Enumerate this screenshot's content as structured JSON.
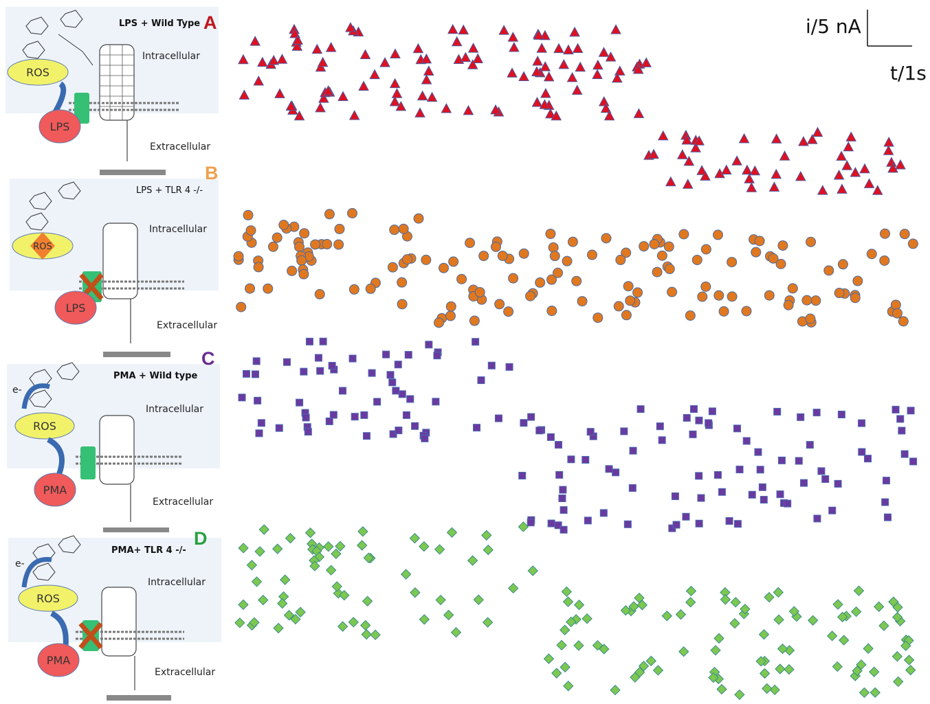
{
  "panels": [
    {
      "letter": "A",
      "letter_color": "#c0141c",
      "condition": "LPS + Wild Type",
      "intracellular": "Intracellular",
      "extracellular": "Extracellular",
      "stimulus": "LPS",
      "ros": "ROS",
      "ros_blocked": false,
      "tlr_blocked": false
    },
    {
      "letter": "B",
      "letter_color": "#f0a050",
      "condition": "LPS + TLR 4 -/-",
      "intracellular": "Intracellular",
      "extracellular": "Extracellular",
      "stimulus": "LPS",
      "ros": "ROS",
      "ros_blocked": true,
      "tlr_blocked": true
    },
    {
      "letter": "C",
      "letter_color": "#6a2a90",
      "condition": "PMA + Wild type",
      "intracellular": "Intracellular",
      "extracellular": "Extracellular",
      "stimulus": "PMA",
      "ros": "ROS",
      "electron": "e-",
      "ros_blocked": false,
      "tlr_blocked": false
    },
    {
      "letter": "D",
      "letter_color": "#2aa040",
      "condition": "PMA+ TLR 4 -/-",
      "intracellular": "Intracellular",
      "extracellular": "Extracellular",
      "stimulus": "PMA",
      "ros": "ROS",
      "electron": "e-",
      "ros_blocked": false,
      "tlr_blocked": true
    }
  ],
  "scale_bar": {
    "current": "i/5 nA",
    "time": "t/1s"
  },
  "traces": [
    {
      "marker": "triangle",
      "color": "#e01020",
      "edge": "#4a5aa0"
    },
    {
      "marker": "circle",
      "color": "#e07820",
      "edge": "#4a6aa0"
    },
    {
      "marker": "square",
      "color": "#6a3aa0",
      "edge": "#4a6ab0"
    },
    {
      "marker": "diamond",
      "color": "#7cc850",
      "edge": "#3a8a8a"
    }
  ]
}
